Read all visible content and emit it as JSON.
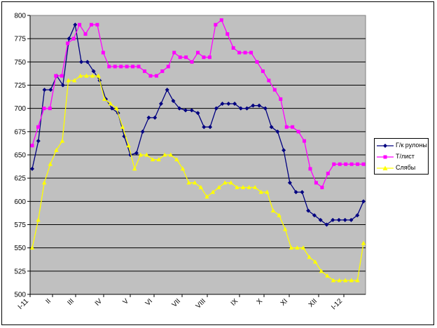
{
  "chart_data": {
    "type": "line",
    "ylim": [
      500,
      800
    ],
    "ytick_step": 25,
    "yticks": [
      "500",
      "525",
      "550",
      "575",
      "600",
      "625",
      "650",
      "675",
      "700",
      "725",
      "750",
      "775",
      "800"
    ],
    "xtick_labels": [
      "I-11",
      "II",
      "III",
      "IV",
      "V",
      "VI",
      "VII",
      "VIII",
      "IX",
      "X",
      "XI",
      "XII",
      "I-12"
    ],
    "grid": true,
    "plot_background": "#c0c0c0",
    "legend_position": "right",
    "series": [
      {
        "name": "Г/к рулоны",
        "color": "#000080",
        "marker": "diamond",
        "values": [
          635,
          665,
          720,
          720,
          735,
          725,
          775,
          790,
          750,
          750,
          740,
          730,
          710,
          700,
          695,
          670,
          650,
          652,
          675,
          690,
          690,
          705,
          720,
          708,
          700,
          698,
          698,
          695,
          680,
          680,
          700,
          705,
          705,
          705,
          700,
          700,
          703,
          703,
          700,
          680,
          675,
          655,
          620,
          610,
          610,
          590,
          585,
          580,
          575,
          580,
          580,
          580,
          580,
          585,
          600
        ]
      },
      {
        "name": "Т/лист",
        "color": "#ff00ff",
        "marker": "square",
        "values": [
          660,
          680,
          700,
          700,
          735,
          735,
          770,
          775,
          790,
          780,
          790,
          790,
          760,
          745,
          745,
          745,
          745,
          745,
          745,
          740,
          735,
          735,
          740,
          745,
          760,
          755,
          755,
          750,
          760,
          755,
          755,
          790,
          795,
          780,
          765,
          760,
          760,
          760,
          750,
          740,
          730,
          720,
          710,
          680,
          680,
          675,
          665,
          635,
          620,
          615,
          630,
          640,
          640,
          640,
          640,
          640,
          640
        ]
      },
      {
        "name": "Слябы",
        "color": "#ffff00",
        "marker": "triangle",
        "values": [
          550,
          580,
          620,
          640,
          655,
          665,
          730,
          730,
          735,
          735,
          735,
          735,
          710,
          705,
          700,
          680,
          660,
          635,
          650,
          650,
          645,
          645,
          650,
          650,
          645,
          635,
          620,
          620,
          615,
          605,
          610,
          615,
          620,
          620,
          615,
          615,
          615,
          615,
          610,
          610,
          590,
          585,
          570,
          550,
          550,
          550,
          540,
          535,
          525,
          520,
          515,
          515,
          515,
          515,
          515,
          555
        ]
      }
    ]
  }
}
